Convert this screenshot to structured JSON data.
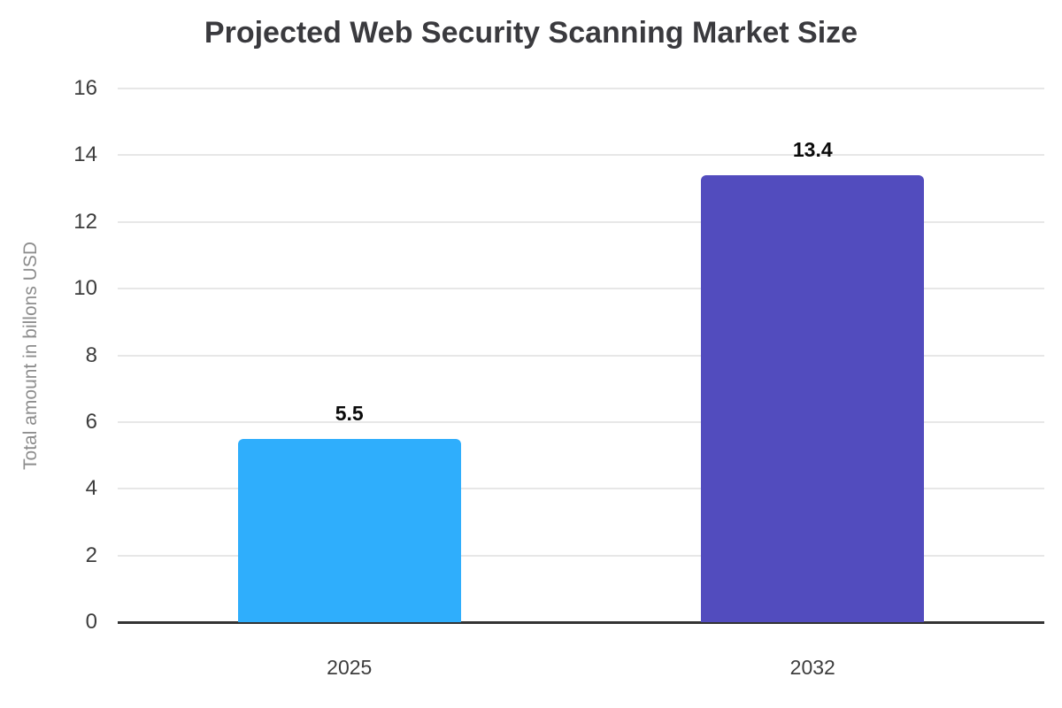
{
  "chart_data": {
    "type": "bar",
    "title": "Projected Web Security Scanning Market Size",
    "categories": [
      "2025",
      "2032"
    ],
    "values": [
      5.5,
      13.4
    ],
    "value_labels": [
      "5.5",
      "13.4"
    ],
    "bar_colors": [
      "#2FAEFC",
      "#524CBE"
    ],
    "xlabel": "",
    "ylabel": "Total amount in billons USD",
    "ylim": [
      0,
      16
    ],
    "ytick_step": 2,
    "ytick_labels": [
      "0",
      "2",
      "4",
      "6",
      "8",
      "10",
      "12",
      "14",
      "16"
    ],
    "grid": "horizontal",
    "legend": "none",
    "colors": {
      "grid": "#E7E7E7",
      "axis": "#333333",
      "tick_label": "#3D3D3D",
      "title": "#3A3A3E",
      "ylabel": "#8D8D8D",
      "value_label": "#0A0A0A",
      "background": "#FFFFFF"
    }
  }
}
